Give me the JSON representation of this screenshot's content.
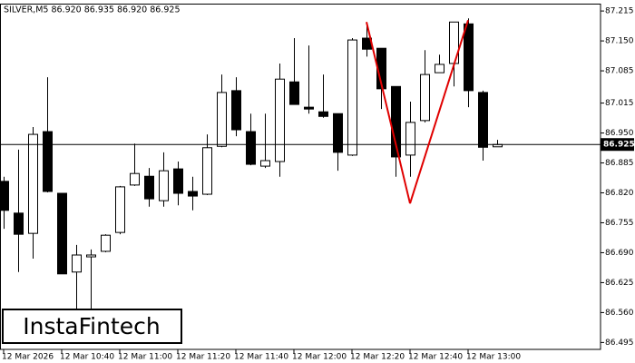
{
  "chart_data": {
    "type": "candlestick",
    "title": "SILVER,M5  86.920 86.935 86.920 86.925",
    "watermark": "InstaFintech",
    "categories": [
      "12 Mar 2026",
      null,
      null,
      null,
      "12 Mar 10:40",
      null,
      null,
      null,
      "12 Mar 11:00",
      null,
      null,
      null,
      "12 Mar 11:20",
      null,
      null,
      null,
      "12 Mar 11:40",
      null,
      null,
      null,
      "12 Mar 12:00",
      null,
      null,
      null,
      "12 Mar 12:20",
      null,
      null,
      null,
      "12 Mar 12:40",
      null,
      null,
      null,
      "12 Mar 13:00",
      null,
      null
    ],
    "open": [
      86.845,
      86.776,
      86.732,
      86.953,
      86.819,
      86.648,
      86.681,
      86.693,
      86.734,
      86.837,
      86.856,
      86.803,
      86.872,
      86.823,
      86.817,
      86.921,
      87.042,
      86.953,
      86.878,
      86.888,
      87.061,
      87.006,
      86.996,
      86.992,
      86.902,
      87.156,
      87.134,
      87.051,
      86.902,
      86.977,
      87.081,
      87.101,
      87.187,
      87.038,
      86.92
    ],
    "high": [
      86.855,
      86.914,
      86.963,
      87.071,
      86.819,
      86.707,
      86.697,
      86.73,
      86.835,
      86.927,
      86.874,
      86.908,
      86.888,
      86.855,
      86.947,
      87.077,
      87.071,
      86.992,
      86.992,
      87.101,
      87.156,
      87.14,
      87.077,
      86.992,
      87.156,
      87.183,
      87.134,
      87.051,
      87.018,
      87.13,
      87.12,
      87.191,
      87.199,
      87.042,
      86.935
    ],
    "low": [
      86.742,
      86.648,
      86.677,
      86.821,
      86.644,
      86.559,
      86.559,
      86.691,
      86.73,
      86.835,
      86.79,
      86.79,
      86.793,
      86.782,
      86.815,
      86.919,
      86.943,
      86.88,
      86.874,
      86.855,
      87.012,
      86.992,
      86.983,
      86.868,
      86.9,
      87.116,
      87.002,
      86.855,
      86.855,
      86.973,
      87.081,
      87.051,
      87.006,
      86.89,
      86.92
    ],
    "close": [
      86.782,
      86.73,
      86.947,
      86.823,
      86.644,
      86.685,
      86.685,
      86.728,
      86.833,
      86.862,
      86.807,
      86.868,
      86.819,
      86.813,
      86.918,
      87.038,
      86.957,
      86.882,
      86.89,
      87.067,
      87.012,
      87.002,
      86.986,
      86.908,
      87.152,
      87.132,
      87.046,
      86.898,
      86.973,
      87.077,
      87.099,
      87.191,
      87.042,
      86.919,
      86.925
    ],
    "up_color": "#ffffff",
    "down_color": "#000000",
    "current_price": 86.925,
    "pattern": {
      "color": "#e00000",
      "indices": [
        25,
        28,
        32
      ],
      "values": [
        87.191,
        86.797,
        87.195
      ]
    },
    "ylim": [
      86.48,
      87.229
    ],
    "yticks": [
      {
        "value": 87.215,
        "label": "87.215"
      },
      {
        "value": 87.15,
        "label": "87.150"
      },
      {
        "value": 87.085,
        "label": "87.085"
      },
      {
        "value": 87.015,
        "label": "87.015"
      },
      {
        "value": 86.95,
        "label": "86.950"
      },
      {
        "value": 86.885,
        "label": "86.885"
      },
      {
        "value": 86.82,
        "label": "86.820"
      },
      {
        "value": 86.755,
        "label": "86.755"
      },
      {
        "value": 86.69,
        "label": "86.690"
      },
      {
        "value": 86.625,
        "label": "86.625"
      },
      {
        "value": 86.56,
        "label": "86.560"
      },
      {
        "value": 86.495,
        "label": "86.495"
      }
    ],
    "grid": false
  }
}
